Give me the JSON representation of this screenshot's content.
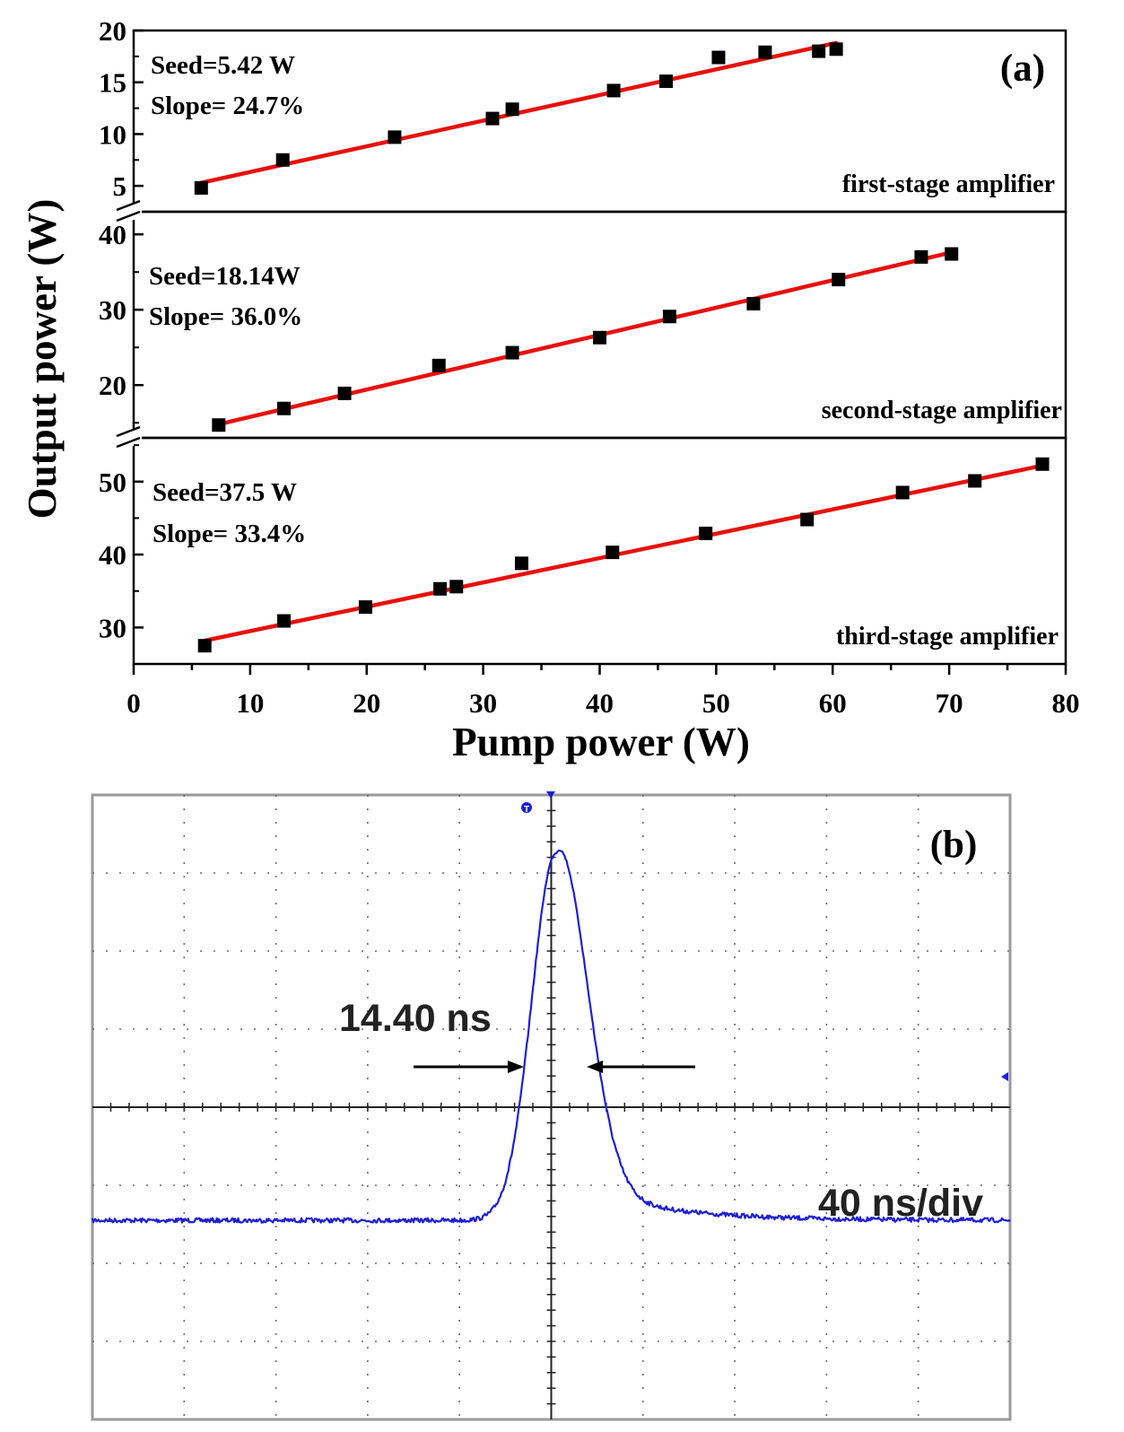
{
  "chart_data": [
    {
      "type": "scatter",
      "panel": "(a)",
      "xlabel": "Pump power (W)",
      "ylabel": "Output power (W)",
      "xlim": [
        0,
        80
      ],
      "x_ticks": [
        "0",
        "10",
        "20",
        "30",
        "40",
        "50",
        "60",
        "70",
        "80"
      ],
      "fit_color": "#e8100c",
      "marker_color": "#000000",
      "stages": [
        {
          "name": "first-stage amplifier",
          "seed_text": "Seed=5.42 W",
          "slope_text": "Slope= 24.7%",
          "ylim": [
            2.5,
            20
          ],
          "y_ticks": [
            5,
            10,
            15,
            20
          ],
          "points": [
            [
              5.8,
              4.8
            ],
            [
              12.8,
              7.5
            ],
            [
              22.4,
              9.7
            ],
            [
              30.8,
              11.5
            ],
            [
              32.5,
              12.4
            ],
            [
              41.2,
              14.2
            ],
            [
              45.7,
              15.1
            ],
            [
              50.2,
              17.4
            ],
            [
              54.2,
              17.9
            ],
            [
              58.8,
              18.0
            ],
            [
              60.3,
              18.2
            ]
          ],
          "fit": [
            [
              5.8,
              5.3
            ],
            [
              60.3,
              18.8
            ]
          ]
        },
        {
          "name": "second-stage amplifier",
          "seed_text": "Seed=18.14W",
          "slope_text": "Slope= 36.0%",
          "ylim": [
            13,
            43
          ],
          "y_ticks": [
            20,
            30,
            40
          ],
          "points": [
            [
              7.3,
              14.7
            ],
            [
              12.9,
              16.9
            ],
            [
              18.1,
              18.9
            ],
            [
              26.2,
              22.6
            ],
            [
              32.5,
              24.3
            ],
            [
              40.0,
              26.3
            ],
            [
              46.0,
              29.1
            ],
            [
              53.2,
              30.8
            ],
            [
              60.5,
              34.0
            ],
            [
              67.6,
              37.0
            ],
            [
              70.2,
              37.4
            ]
          ],
          "fit": [
            [
              7.3,
              14.8
            ],
            [
              70.2,
              37.6
            ]
          ]
        },
        {
          "name": "third-stage amplifier",
          "seed_text": "Seed=37.5 W",
          "slope_text": "Slope= 33.4%",
          "ylim": [
            25,
            56
          ],
          "y_ticks": [
            30,
            40,
            50
          ],
          "points": [
            [
              6.1,
              27.5
            ],
            [
              12.9,
              30.9
            ],
            [
              19.9,
              32.8
            ],
            [
              26.3,
              35.3
            ],
            [
              27.7,
              35.6
            ],
            [
              33.3,
              38.8
            ],
            [
              41.1,
              40.3
            ],
            [
              49.1,
              42.9
            ],
            [
              57.8,
              44.8
            ],
            [
              66.0,
              48.5
            ],
            [
              72.2,
              50.1
            ],
            [
              78.0,
              52.4
            ]
          ],
          "fit": [
            [
              6.1,
              28.2
            ],
            [
              78.0,
              52.2
            ]
          ]
        }
      ]
    },
    {
      "type": "line",
      "panel": "(b)",
      "description_text": "",
      "pulse_width_label": "14.40 ns",
      "timebase_label": "40 ns/div",
      "grid_divisions": {
        "x": 10,
        "y": 8
      },
      "trace_color": "#1d1fd6",
      "baseline_div": 2.55,
      "peak_div": 7.25,
      "peak_time_div": 0.05,
      "fwhm_ns": 14.4
    }
  ]
}
